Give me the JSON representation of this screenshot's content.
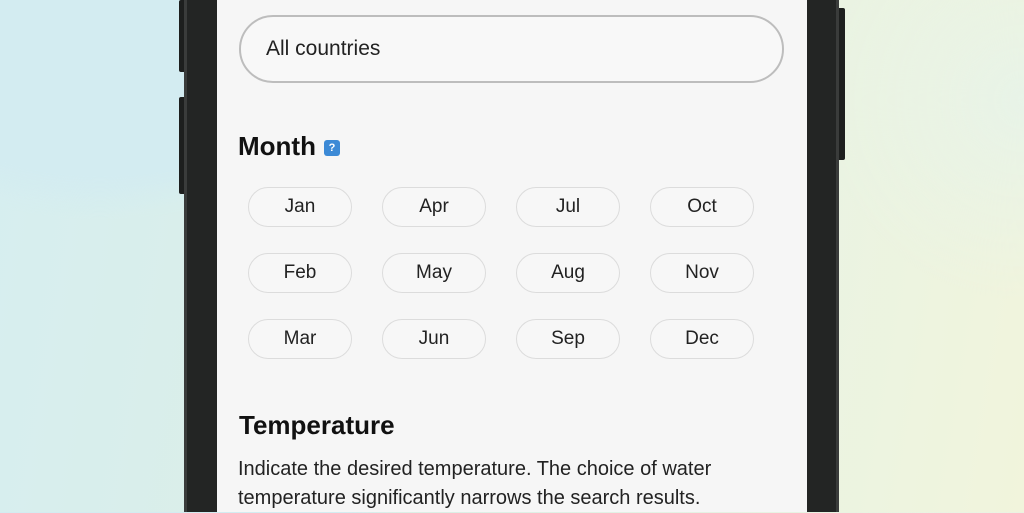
{
  "country_select": {
    "value": "All countries"
  },
  "month": {
    "title": "Month",
    "help_icon": "?",
    "months": [
      "Jan",
      "Apr",
      "Jul",
      "Oct",
      "Feb",
      "May",
      "Aug",
      "Nov",
      "Mar",
      "Jun",
      "Sep",
      "Dec"
    ]
  },
  "temperature": {
    "title": "Temperature",
    "description": "Indicate the desired temperature. The choice of water temperature significantly narrows the search results."
  }
}
